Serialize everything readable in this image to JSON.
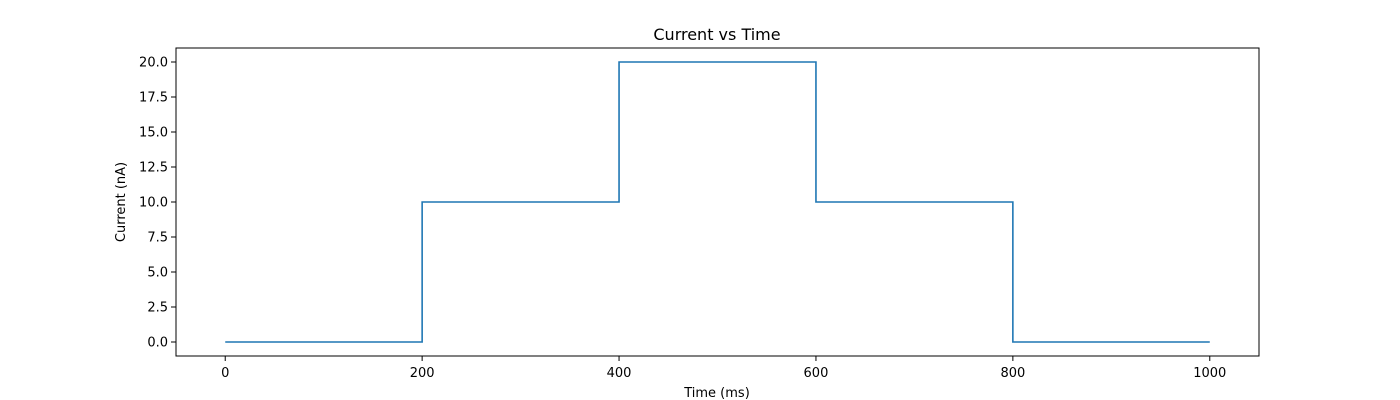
{
  "chart_data": {
    "type": "line",
    "title": "Current vs Time",
    "xlabel": "Time (ms)",
    "ylabel": "Current (nA)",
    "xlim": [
      -50,
      1050
    ],
    "ylim": [
      -1.0,
      21.0
    ],
    "x_ticks": [
      0,
      200,
      400,
      600,
      800,
      1000
    ],
    "x_tick_labels": [
      "0",
      "200",
      "400",
      "600",
      "800",
      "1000"
    ],
    "y_ticks": [
      0,
      2.5,
      5,
      7.5,
      10,
      12.5,
      15,
      17.5,
      20
    ],
    "y_tick_labels": [
      "0.0",
      "2.5",
      "5.0",
      "7.5",
      "10.0",
      "12.5",
      "15.0",
      "17.5",
      "20.0"
    ],
    "grid": false,
    "series": [
      {
        "color": "#1f77b4",
        "x": [
          0,
          200,
          200,
          400,
          400,
          600,
          600,
          800,
          800,
          1000
        ],
        "y": [
          0,
          0,
          10,
          10,
          20,
          20,
          10,
          10,
          0,
          0
        ]
      }
    ]
  }
}
